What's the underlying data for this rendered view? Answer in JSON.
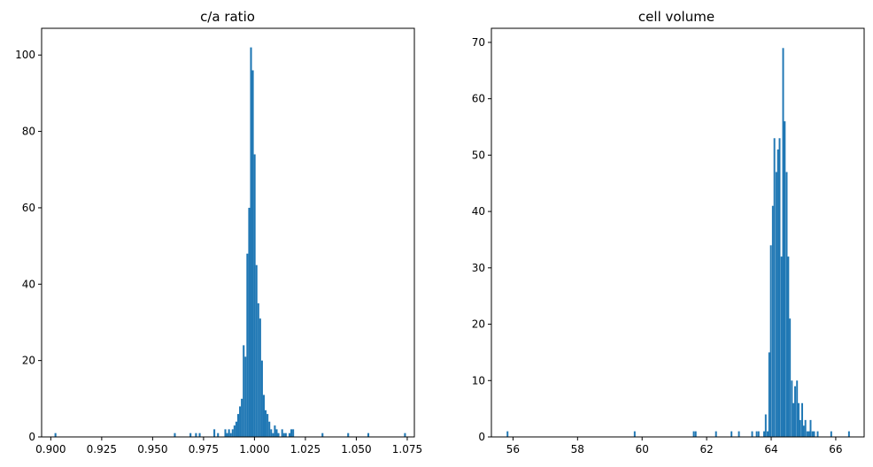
{
  "chart_data": [
    {
      "type": "bar",
      "subtype": "histogram",
      "title": "c/a ratio",
      "xlabel": "",
      "ylabel": "",
      "xlim": [
        0.8955,
        1.0785
      ],
      "ylim": [
        0,
        107
      ],
      "xticks": [
        0.9,
        0.925,
        0.95,
        0.975,
        1.0,
        1.025,
        1.05,
        1.075
      ],
      "xtick_labels": [
        "0.900",
        "0.925",
        "0.950",
        "0.975",
        "1.000",
        "1.025",
        "1.050",
        "1.075"
      ],
      "yticks": [
        0,
        20,
        40,
        60,
        80,
        100
      ],
      "ytick_labels": [
        "0",
        "20",
        "40",
        "60",
        "80",
        "100"
      ],
      "bar_color": "#1f77b4",
      "bin_width": 0.0009,
      "x": [
        0.9023,
        0.9609,
        0.9686,
        0.9713,
        0.9731,
        0.9803,
        0.9821,
        0.9857,
        0.9866,
        0.9875,
        0.9884,
        0.9893,
        0.9902,
        0.9911,
        0.992,
        0.9929,
        0.9938,
        0.9947,
        0.9956,
        0.9965,
        0.9974,
        0.9983,
        0.9992,
        1.0001,
        1.001,
        1.0019,
        1.0028,
        1.0037,
        1.0046,
        1.0055,
        1.0064,
        1.0073,
        1.0082,
        1.0091,
        1.01,
        1.0109,
        1.0118,
        1.0136,
        1.0145,
        1.0154,
        1.0172,
        1.0181,
        1.019,
        1.0334,
        1.046,
        1.0559,
        1.0739
      ],
      "values": [
        1,
        1,
        1,
        1,
        1,
        2,
        1,
        2,
        1,
        2,
        1,
        2,
        3,
        4,
        6,
        8,
        10,
        24,
        21,
        48,
        60,
        102,
        96,
        74,
        45,
        35,
        31,
        20,
        11,
        7,
        6,
        4,
        2,
        1,
        3,
        2,
        1,
        2,
        1,
        1,
        1,
        2,
        2,
        1,
        1,
        1,
        1
      ]
    },
    {
      "type": "bar",
      "subtype": "histogram",
      "title": "cell volume",
      "xlabel": "",
      "ylabel": "",
      "xlim": [
        55.33,
        66.88
      ],
      "ylim": [
        0,
        72.5
      ],
      "xticks": [
        56,
        58,
        60,
        62,
        64,
        66
      ],
      "xtick_labels": [
        "56",
        "58",
        "60",
        "62",
        "64",
        "66"
      ],
      "yticks": [
        0,
        10,
        20,
        30,
        40,
        50,
        60,
        70
      ],
      "ytick_labels": [
        "0",
        "10",
        "20",
        "30",
        "40",
        "50",
        "60",
        "70"
      ],
      "bar_color": "#1f77b4",
      "bin_width": 0.0535,
      "x": [
        55.83,
        59.77,
        61.6,
        61.66,
        62.29,
        62.77,
        63.0,
        63.41,
        63.55,
        63.61,
        63.78,
        63.83,
        63.89,
        63.94,
        63.99,
        64.05,
        64.1,
        64.16,
        64.21,
        64.26,
        64.32,
        64.37,
        64.42,
        64.48,
        64.53,
        64.58,
        64.64,
        64.69,
        64.74,
        64.8,
        64.85,
        64.9,
        64.96,
        65.01,
        65.06,
        65.12,
        65.17,
        65.22,
        65.28,
        65.33,
        65.44,
        65.86,
        66.41
      ],
      "values": [
        1,
        1,
        1,
        1,
        1,
        1,
        1,
        1,
        1,
        1,
        1,
        4,
        1,
        15,
        34,
        41,
        53,
        47,
        51,
        53,
        32,
        69,
        56,
        47,
        32,
        21,
        10,
        6,
        9,
        10,
        6,
        3,
        6,
        2,
        3,
        1,
        1,
        3,
        1,
        1,
        1,
        1,
        1
      ]
    }
  ]
}
